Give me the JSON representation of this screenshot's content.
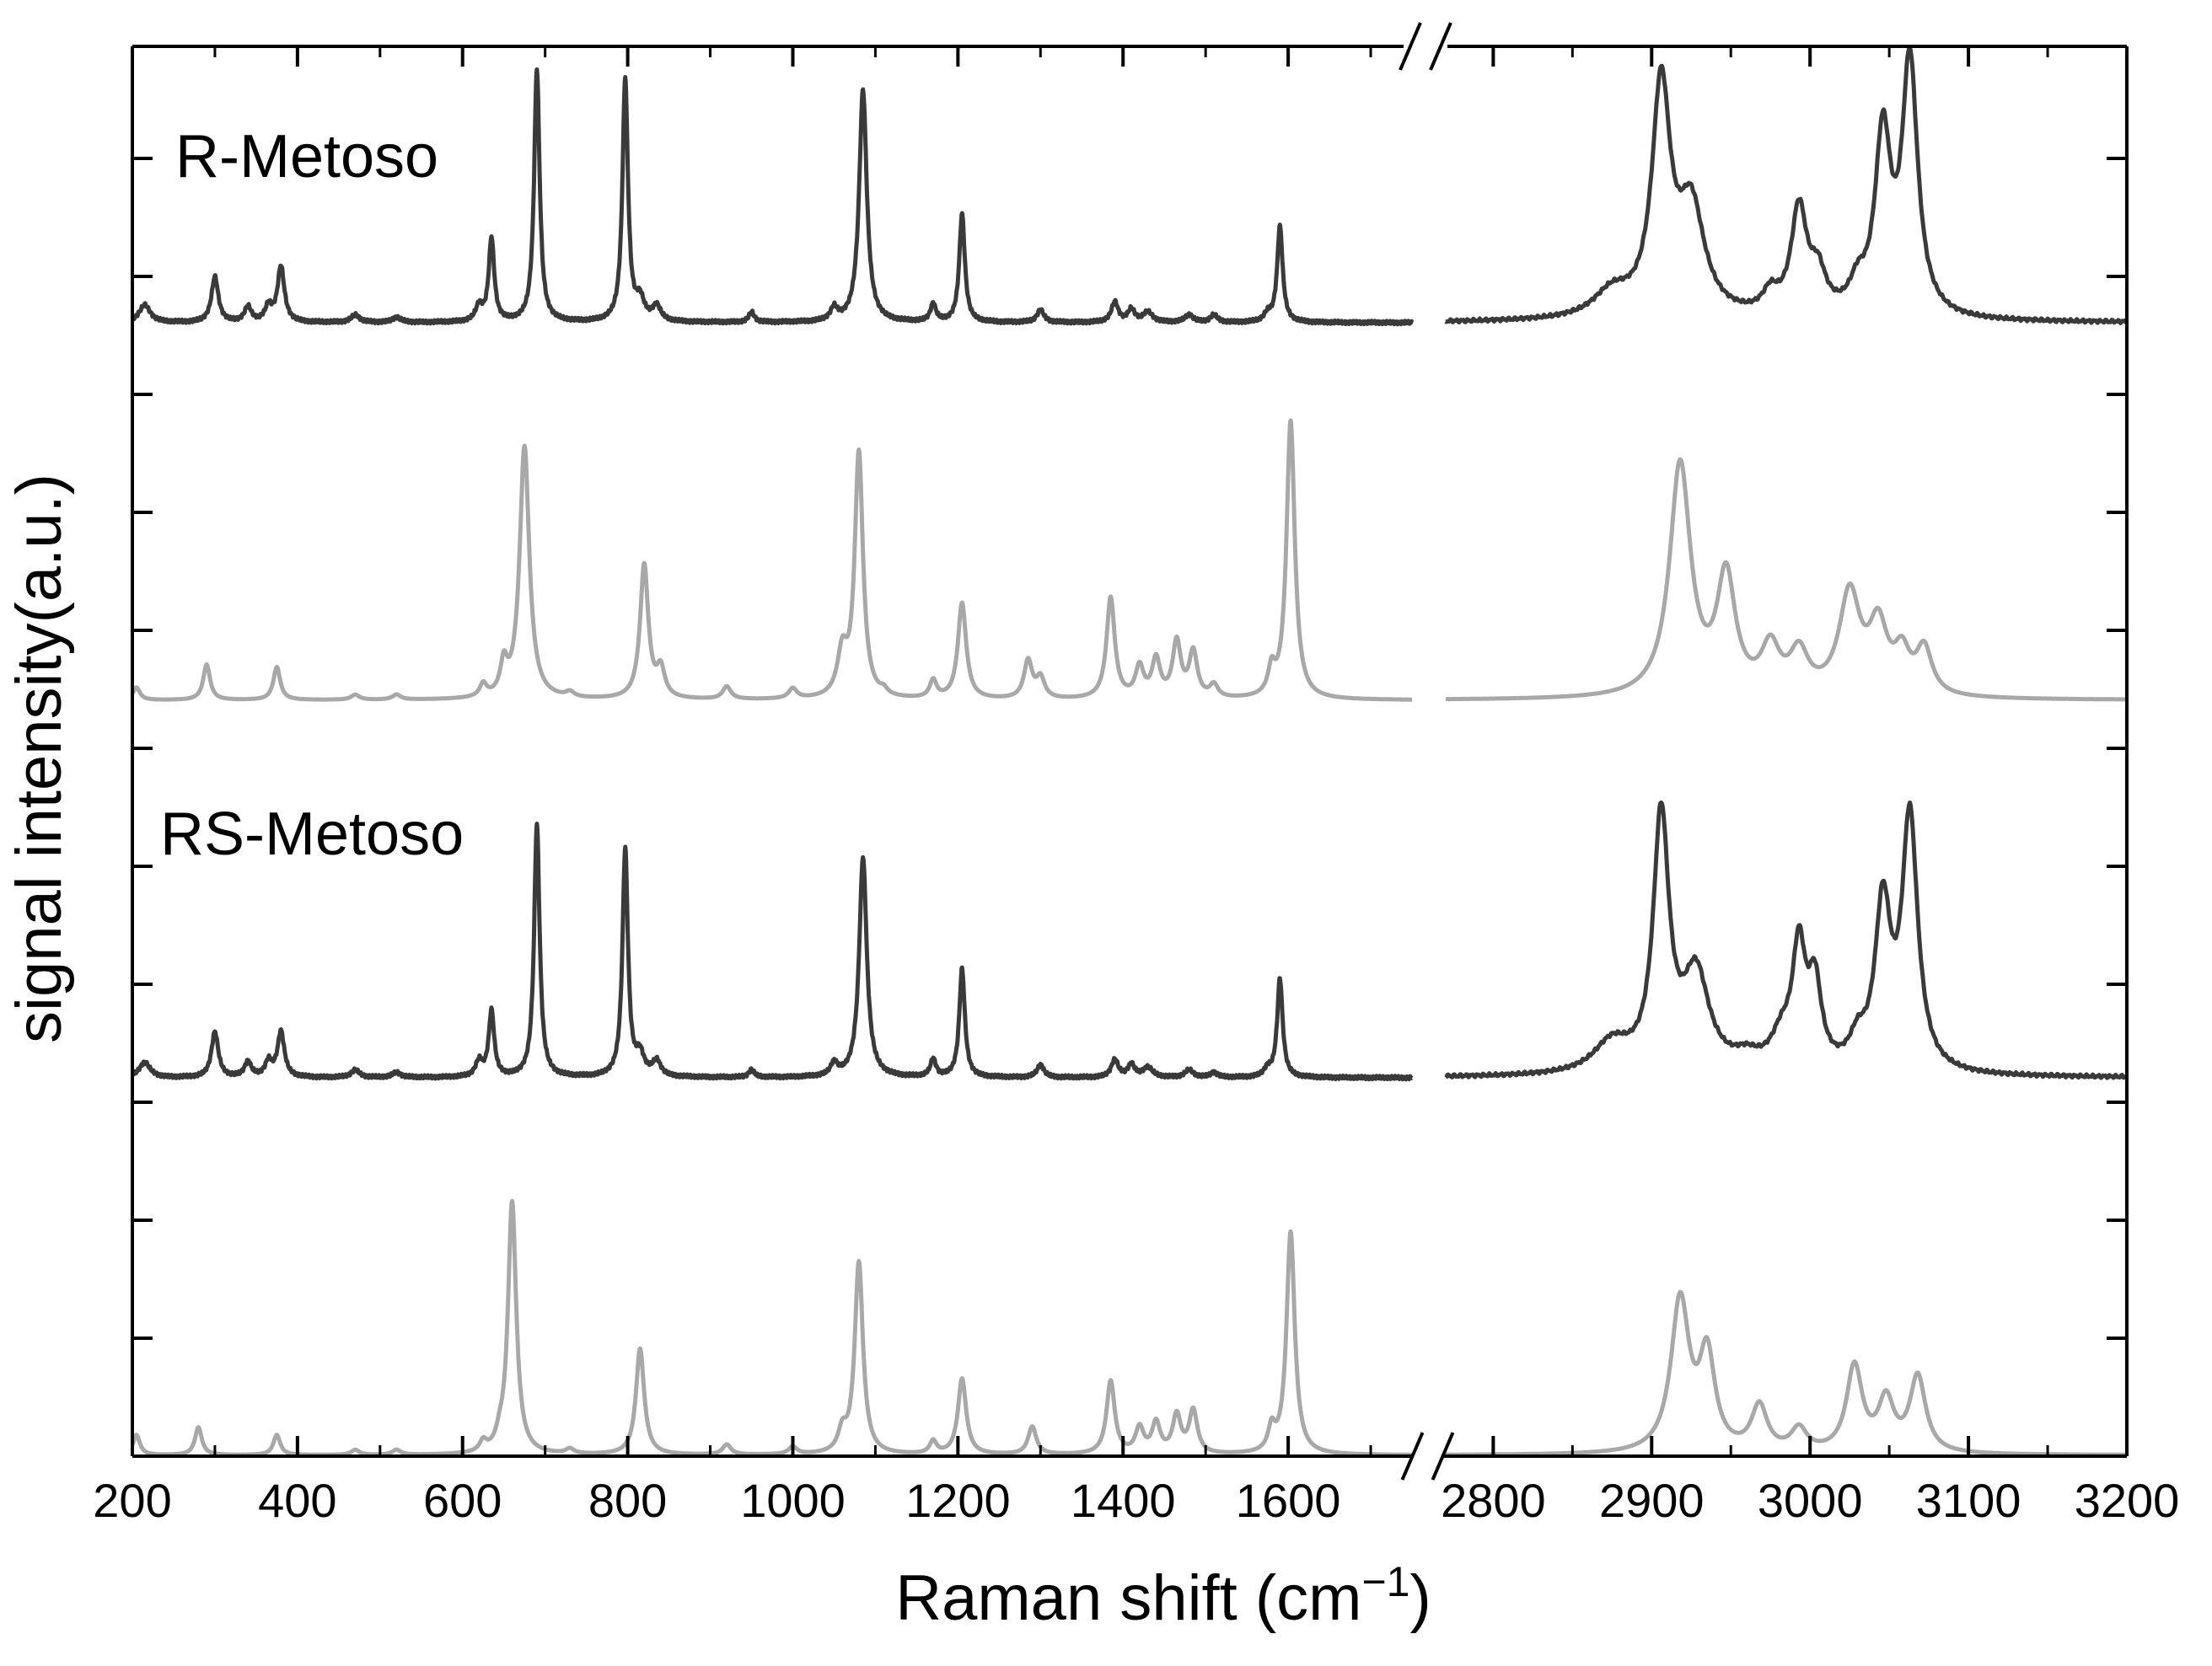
{
  "chart_data": {
    "type": "line",
    "xlabel": "Raman shift (cm",
    "xlabel_sup": "−1",
    "xlabel_end": ")",
    "ylabel": "signal intensity(a.u.)",
    "x_broken_axis": true,
    "x_segments": [
      {
        "xlim": [
          200,
          1750
        ],
        "ticks": [
          200,
          400,
          600,
          800,
          1000,
          1200,
          1400,
          1600
        ]
      },
      {
        "xlim": [
          2770,
          3200
        ],
        "ticks": [
          2800,
          2900,
          3000,
          3100,
          3200
        ]
      }
    ],
    "y_ticks_shown": false,
    "annotations": [
      {
        "text": "R-Metoso",
        "near_series": 0
      },
      {
        "text": "RS-Metoso",
        "near_series": 2
      }
    ],
    "colors": {
      "experimental": "#3a3a3a",
      "calculated": "#a8a8a8"
    },
    "series": [
      {
        "role": "experimental",
        "color": "#3a3a3a",
        "offset": 3,
        "peaks": [
          [
            215,
            0.07,
            8
          ],
          [
            300,
            0.18,
            5
          ],
          [
            340,
            0.06,
            5
          ],
          [
            365,
            0.06,
            5
          ],
          [
            380,
            0.22,
            5
          ],
          [
            470,
            0.03,
            6
          ],
          [
            520,
            0.02,
            6
          ],
          [
            620,
            0.06,
            5
          ],
          [
            635,
            0.33,
            4
          ],
          [
            690,
            1.0,
            4
          ],
          [
            797,
            0.96,
            4
          ],
          [
            815,
            0.08,
            6
          ],
          [
            835,
            0.06,
            6
          ],
          [
            950,
            0.04,
            4
          ],
          [
            1050,
            0.05,
            5
          ],
          [
            1085,
            0.92,
            5.5
          ],
          [
            1170,
            0.07,
            4
          ],
          [
            1205,
            0.43,
            4
          ],
          [
            1300,
            0.05,
            5
          ],
          [
            1390,
            0.08,
            5
          ],
          [
            1410,
            0.05,
            5
          ],
          [
            1430,
            0.04,
            7
          ],
          [
            1480,
            0.03,
            6
          ],
          [
            1510,
            0.03,
            5
          ],
          [
            1575,
            0.03,
            5
          ],
          [
            1590,
            0.38,
            4
          ],
          [
            2875,
            0.1,
            14
          ],
          [
            2906,
            0.9,
            7
          ],
          [
            2925,
            0.42,
            10
          ],
          [
            2975,
            0.08,
            6
          ],
          [
            2993,
            0.42,
            6
          ],
          [
            3005,
            0.15,
            6
          ],
          [
            3030,
            0.1,
            6
          ],
          [
            3046,
            0.7,
            6
          ],
          [
            3063,
            1.0,
            6
          ]
        ]
      },
      {
        "role": "calculated",
        "color": "#a8a8a8",
        "offset": 2,
        "peaks": [
          [
            205,
            0.05,
            5
          ],
          [
            290,
            0.14,
            5
          ],
          [
            375,
            0.13,
            5
          ],
          [
            470,
            0.02,
            6
          ],
          [
            520,
            0.02,
            6
          ],
          [
            625,
            0.05,
            5
          ],
          [
            650,
            0.12,
            5
          ],
          [
            675,
            1.0,
            7
          ],
          [
            730,
            0.02,
            6
          ],
          [
            820,
            0.53,
            6
          ],
          [
            840,
            0.11,
            6
          ],
          [
            920,
            0.05,
            6
          ],
          [
            1000,
            0.04,
            6
          ],
          [
            1060,
            0.17,
            7
          ],
          [
            1080,
            0.97,
            6
          ],
          [
            1110,
            0.02,
            5
          ],
          [
            1170,
            0.07,
            5
          ],
          [
            1205,
            0.38,
            6
          ],
          [
            1285,
            0.15,
            6
          ],
          [
            1300,
            0.08,
            6
          ],
          [
            1385,
            0.4,
            6
          ],
          [
            1420,
            0.12,
            6
          ],
          [
            1440,
            0.15,
            6
          ],
          [
            1465,
            0.22,
            6
          ],
          [
            1485,
            0.18,
            6
          ],
          [
            1510,
            0.05,
            6
          ],
          [
            1580,
            0.1,
            5
          ],
          [
            1603,
            1.1,
            6
          ],
          [
            2918,
            0.92,
            8
          ],
          [
            2947,
            0.46,
            7
          ],
          [
            2975,
            0.18,
            7
          ],
          [
            2993,
            0.16,
            7
          ],
          [
            3025,
            0.4,
            8
          ],
          [
            3043,
            0.26,
            7
          ],
          [
            3058,
            0.15,
            6
          ],
          [
            3072,
            0.18,
            6
          ]
        ]
      },
      {
        "role": "experimental",
        "color": "#3a3a3a",
        "offset": 1,
        "peaks": [
          [
            215,
            0.06,
            8
          ],
          [
            300,
            0.18,
            5
          ],
          [
            340,
            0.06,
            5
          ],
          [
            365,
            0.06,
            5
          ],
          [
            380,
            0.18,
            5
          ],
          [
            470,
            0.03,
            6
          ],
          [
            520,
            0.02,
            6
          ],
          [
            620,
            0.06,
            5
          ],
          [
            635,
            0.26,
            4
          ],
          [
            690,
            1.0,
            4
          ],
          [
            797,
            0.9,
            4
          ],
          [
            815,
            0.08,
            6
          ],
          [
            835,
            0.06,
            6
          ],
          [
            950,
            0.03,
            4
          ],
          [
            1050,
            0.05,
            5
          ],
          [
            1085,
            0.87,
            5.5
          ],
          [
            1170,
            0.07,
            4
          ],
          [
            1205,
            0.43,
            4
          ],
          [
            1300,
            0.05,
            5
          ],
          [
            1390,
            0.07,
            5
          ],
          [
            1410,
            0.05,
            5
          ],
          [
            1430,
            0.04,
            7
          ],
          [
            1480,
            0.03,
            6
          ],
          [
            1510,
            0.02,
            5
          ],
          [
            1575,
            0.03,
            5
          ],
          [
            1590,
            0.39,
            4
          ],
          [
            2875,
            0.12,
            14
          ],
          [
            2906,
            1.0,
            6
          ],
          [
            2928,
            0.38,
            10
          ],
          [
            2960,
            0.05,
            10
          ],
          [
            2982,
            0.12,
            8
          ],
          [
            2993,
            0.46,
            5
          ],
          [
            3003,
            0.32,
            5
          ],
          [
            3030,
            0.1,
            6
          ],
          [
            3046,
            0.64,
            6
          ],
          [
            3063,
            1.0,
            6
          ]
        ]
      },
      {
        "role": "calculated",
        "color": "#a8a8a8",
        "offset": 0,
        "peaks": [
          [
            205,
            0.08,
            5
          ],
          [
            280,
            0.11,
            5
          ],
          [
            375,
            0.08,
            5
          ],
          [
            470,
            0.02,
            6
          ],
          [
            520,
            0.02,
            6
          ],
          [
            625,
            0.04,
            5
          ],
          [
            645,
            0.04,
            5
          ],
          [
            660,
            1.0,
            6
          ],
          [
            730,
            0.02,
            6
          ],
          [
            815,
            0.42,
            6
          ],
          [
            920,
            0.04,
            6
          ],
          [
            1000,
            0.03,
            6
          ],
          [
            1060,
            0.08,
            6
          ],
          [
            1080,
            0.76,
            6
          ],
          [
            1170,
            0.05,
            5
          ],
          [
            1205,
            0.3,
            6
          ],
          [
            1290,
            0.11,
            6
          ],
          [
            1385,
            0.29,
            6
          ],
          [
            1420,
            0.1,
            6
          ],
          [
            1440,
            0.12,
            6
          ],
          [
            1465,
            0.15,
            6
          ],
          [
            1485,
            0.17,
            6
          ],
          [
            1580,
            0.09,
            5
          ],
          [
            1603,
            0.88,
            6
          ],
          [
            2918,
            0.6,
            7
          ],
          [
            2935,
            0.37,
            6
          ],
          [
            2968,
            0.18,
            6
          ],
          [
            2993,
            0.09,
            6
          ],
          [
            3028,
            0.34,
            6
          ],
          [
            3048,
            0.2,
            6
          ],
          [
            3068,
            0.3,
            6
          ]
        ]
      }
    ]
  }
}
